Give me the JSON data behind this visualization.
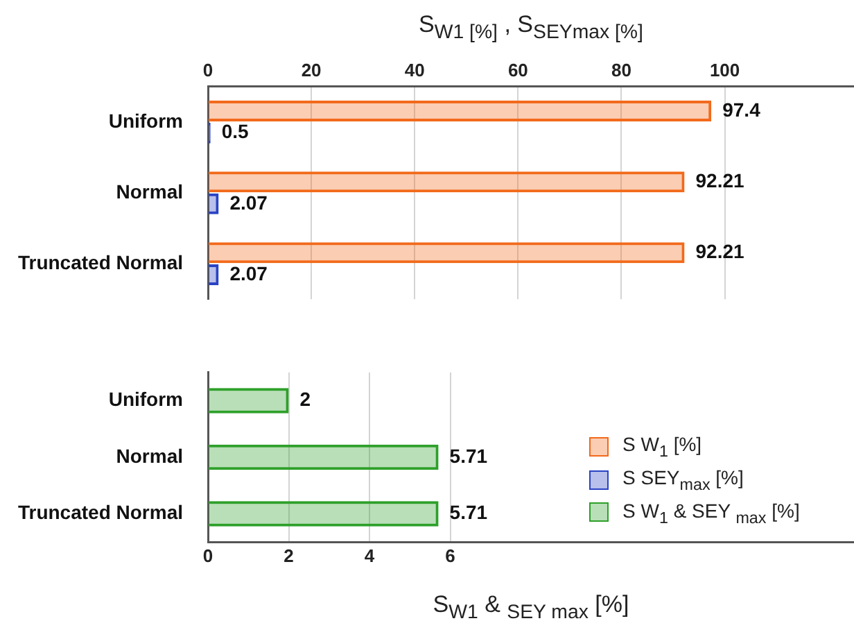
{
  "chart_data": [
    {
      "type": "bar",
      "orientation": "horizontal",
      "x2label": "S$_{W1 [%]}$ , S$_{SEYmax [%]}$",
      "categories": [
        "Uniform",
        "Normal",
        "Truncated Normal"
      ],
      "series": [
        {
          "name": "S W$_{1}$ [%]",
          "color": "#f26a1b",
          "values": [
            97.4,
            92.21,
            92.21
          ]
        },
        {
          "name": "S SEY$_{max}$ [%]",
          "color": "#2a43c4",
          "values": [
            0.5,
            2.07,
            2.07
          ]
        }
      ],
      "x2lim": [
        0,
        125
      ],
      "x2ticks": [
        0,
        20,
        40,
        60,
        80,
        100
      ],
      "grid": "x",
      "data_labels": true,
      "legend": "right"
    },
    {
      "type": "bar",
      "orientation": "horizontal",
      "xlabel": "S$_{W1}$ & $_{SEY max}$ [%]",
      "categories": [
        "Uniform",
        "Normal",
        "Truncated Normal"
      ],
      "series": [
        {
          "name": "S W$_{1}$ & SEY $_{max}$ [%]",
          "color": "#2ea02a",
          "values": [
            2,
            5.71,
            5.71
          ]
        }
      ],
      "xlim": [
        0,
        16
      ],
      "xticks": [
        0,
        2,
        4,
        6
      ],
      "grid": "x",
      "data_labels": true,
      "legend": "right"
    }
  ]
}
